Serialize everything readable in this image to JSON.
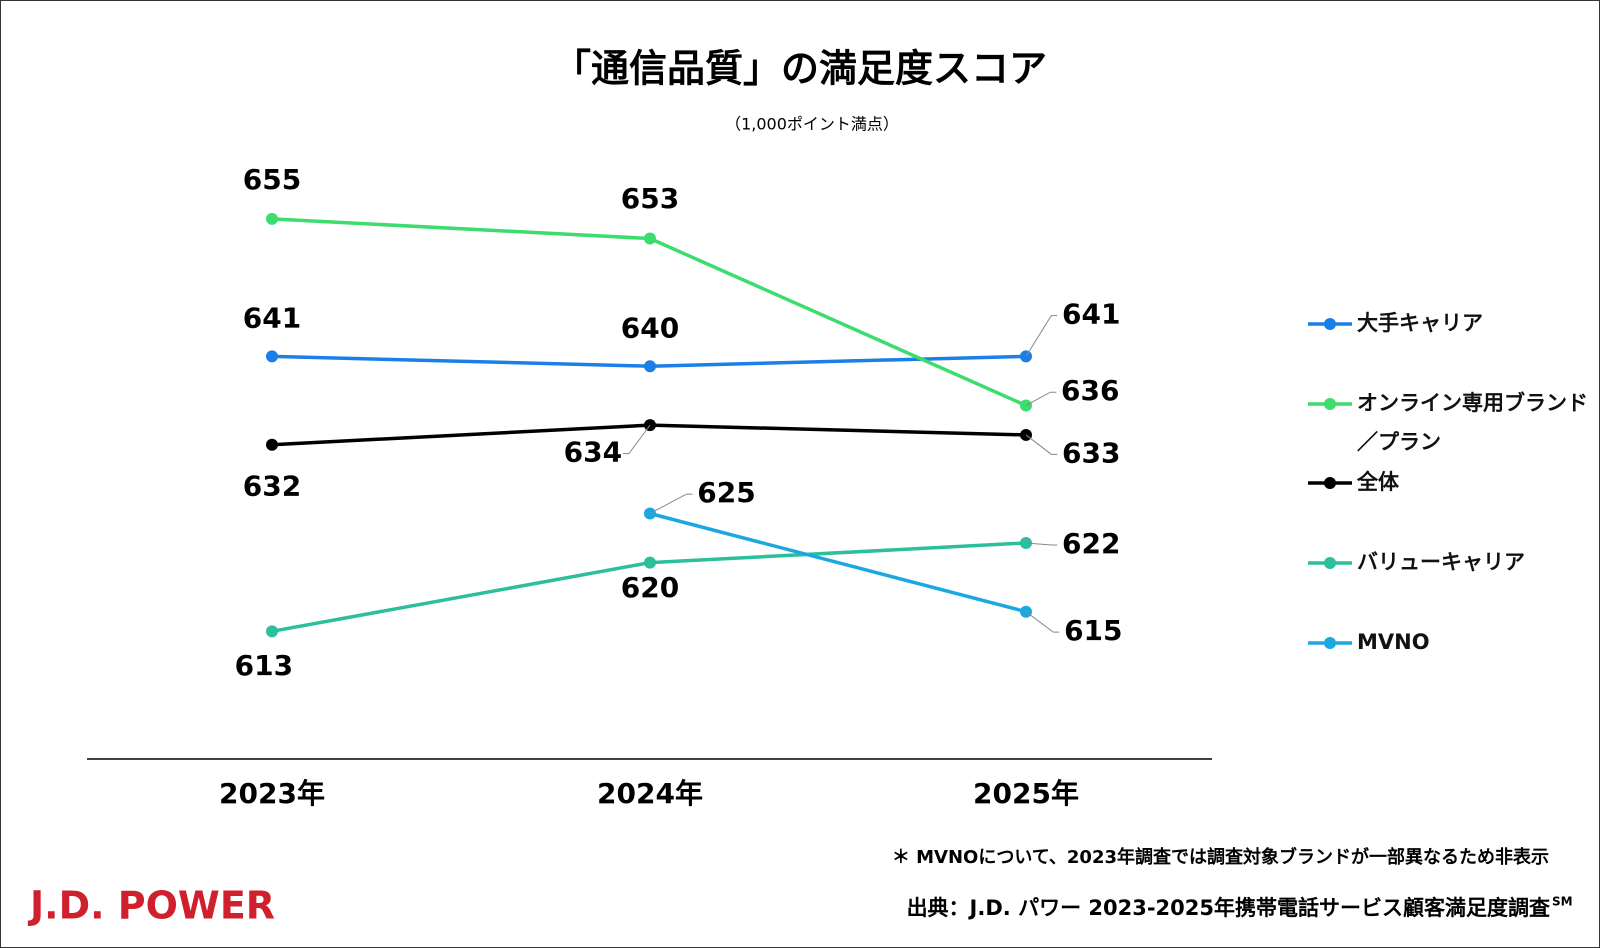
{
  "chart_data": {
    "type": "line",
    "title": "「通信品質」の満足度スコア",
    "subtitle": "（1,000ポイント満点）",
    "categories": [
      "2023年",
      "2024年",
      "2025年"
    ],
    "series": [
      {
        "name": "大手キャリア",
        "color": "#1a7fe6",
        "values": [
          641,
          640,
          641
        ]
      },
      {
        "name": "オンライン専用ブランド／プラン",
        "color": "#3ddc6e",
        "values": [
          655,
          653,
          636
        ]
      },
      {
        "name": "全体",
        "color": "#000000",
        "values": [
          632,
          634,
          633
        ]
      },
      {
        "name": "バリューキャリア",
        "color": "#2bbf9b",
        "values": [
          613,
          620,
          622
        ]
      },
      {
        "name": "MVNO",
        "color": "#1ba8e0",
        "values": [
          null,
          625,
          615
        ]
      }
    ],
    "ylim": [
      600,
      670
    ],
    "legend": "right",
    "footnote": "＊ MVNOについて、2023年調査では調査対象ブランドが一部異なるため非表示",
    "source": "出典：J.D. パワー 2023-2025年携帯電話サービス顧客満足度調査",
    "source_mark": "SM",
    "logo": "J.D. POWER"
  }
}
